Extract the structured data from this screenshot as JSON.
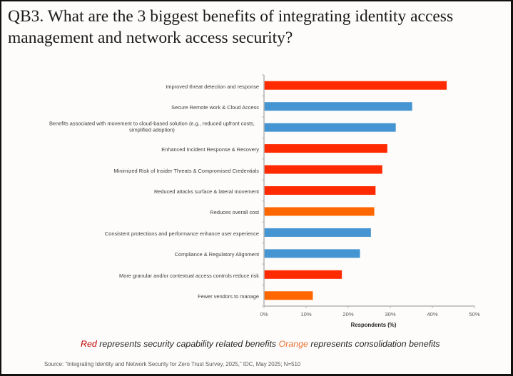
{
  "title": "QB3. What are the 3 biggest benefits of integrating identity access management and network access security?",
  "chart_data": {
    "type": "bar",
    "orientation": "horizontal",
    "title": "QB3. What are the 3 biggest benefits of integrating identity access management and network access security?",
    "categories": [
      "Improved threat detection and response",
      "Secure Remote work & Cloud Access",
      "Benefits associated with movement to cloud-based solution (e.g., reduced upfront costs, simplified adoption)",
      "Enhanced Incident Response & Recovery",
      "Minimized Risk of Insider Threats & Compromised Credentials",
      "Reduced attacks surface & lateral movement",
      "Reduces overall cost",
      "Consistent protections and performance enhance user experience",
      "Compliance & Regulatory Alignment",
      "More granular and/or contextual access controls reduce risk",
      "Fewer vendors to manage"
    ],
    "values": [
      43.4,
      35.2,
      31.3,
      29.3,
      28.1,
      26.5,
      26.2,
      25.4,
      22.8,
      18.5,
      11.6
    ],
    "groups": [
      "security",
      "other",
      "other",
      "security",
      "security",
      "security",
      "consolidation",
      "other",
      "other",
      "security",
      "consolidation"
    ],
    "colors": {
      "security": "#ff2a00",
      "consolidation": "#ff6600",
      "other": "#4495d1"
    },
    "xlabel": "Respondents (%)",
    "ylabel": "",
    "xlim": [
      0,
      50
    ],
    "xticks": [
      0,
      10,
      20,
      30,
      40,
      50
    ],
    "xtick_labels": [
      "0%",
      "10%",
      "20%",
      "30%",
      "40%",
      "50%"
    ],
    "grid": false,
    "legend": "bottom"
  },
  "legend": {
    "items": [
      {
        "word": "Red",
        "color": "#c00000",
        "text": "represents security capability related benefits"
      },
      {
        "word": "Orange",
        "color": "#e97132",
        "text": "represents consolidation benefits"
      }
    ]
  },
  "source": "Source: “Integrating Identity and Network Security for Zero Trust Survey, 2025,” IDC, May 2025; N=510"
}
